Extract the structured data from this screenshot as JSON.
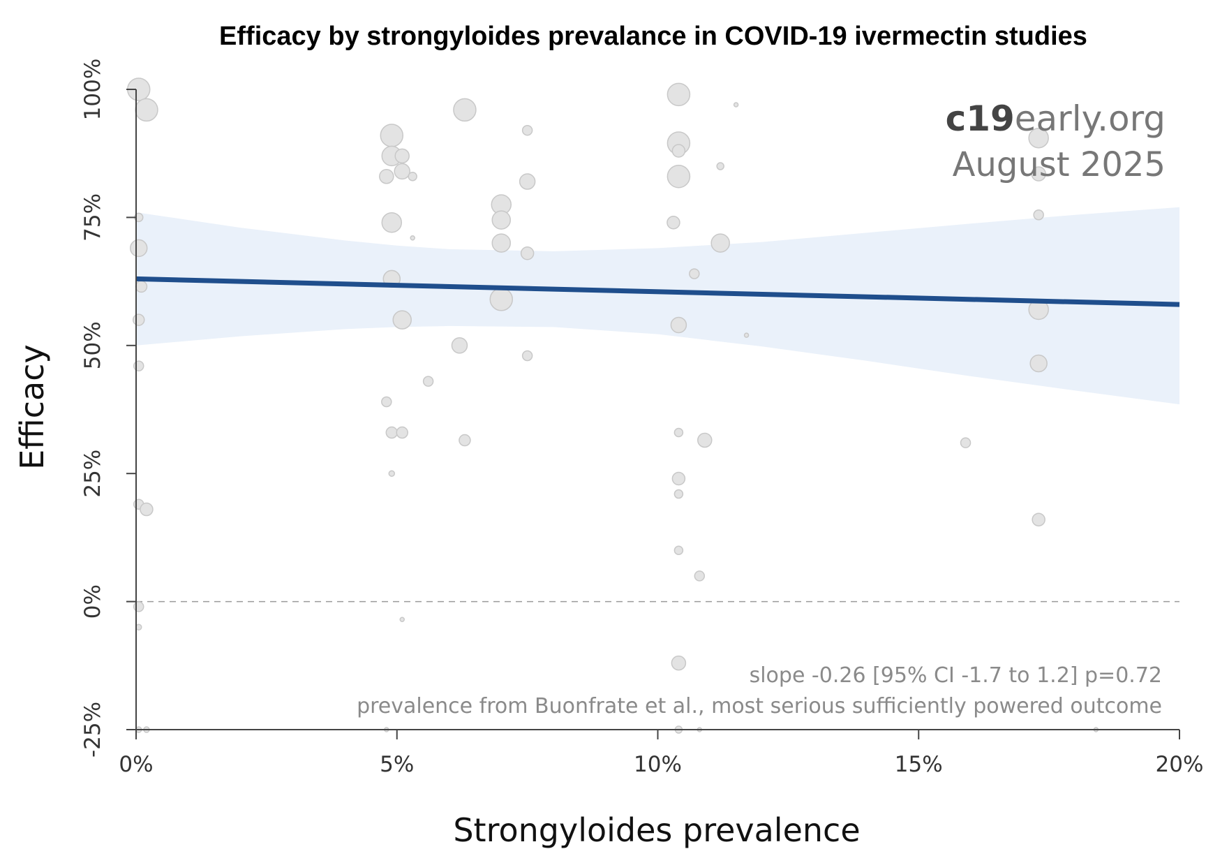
{
  "title": "Efficacy by strongyloides prevalance in COVID-19 ivermectin studies",
  "brand": {
    "bold": "c19",
    "rest": "early",
    "suffix": ".org",
    "date": "August 2025"
  },
  "notes": {
    "slope": "slope -0.26 [95% CI -1.7 to 1.2] p=0.72",
    "source": "prevalence from Buonfrate et al., most serious sufficiently powered outcome"
  },
  "colors": {
    "fit_line": "#1f4e8c",
    "ci_band": "#eaf1fa",
    "points_fill": "#e3e3e3",
    "points_stroke": "#c8c8c8",
    "zero_line": "#9a9a9a"
  },
  "chart_data": {
    "type": "scatter",
    "xlabel": "Strongyloides prevalence",
    "ylabel": "Efficacy",
    "xlim": [
      0,
      20
    ],
    "ylim": [
      -25,
      100
    ],
    "x_ticks": [
      0,
      5,
      10,
      15,
      20
    ],
    "y_ticks": [
      -25,
      0,
      25,
      50,
      75,
      100
    ],
    "x_tick_labels": [
      "0%",
      "5%",
      "10%",
      "15%",
      "20%"
    ],
    "y_tick_labels": [
      "-25%",
      "0%",
      "25%",
      "50%",
      "75%",
      "100%"
    ],
    "grid": false,
    "zero_reference_line": 0,
    "regression": {
      "x": [
        0,
        20
      ],
      "y": [
        63,
        58
      ],
      "ci_band": {
        "x": [
          0,
          2,
          4,
          5,
          6,
          8,
          10,
          12,
          14,
          16,
          18,
          20
        ],
        "upper": [
          76,
          73,
          70.5,
          69.5,
          68.8,
          68.4,
          69,
          70.2,
          72,
          73.8,
          75.5,
          77
        ],
        "lower": [
          50,
          51.8,
          53.2,
          53.6,
          53.8,
          53.6,
          52.2,
          49.8,
          47,
          44,
          41.2,
          38.5
        ]
      }
    },
    "points": [
      {
        "x": 0.05,
        "y": 100,
        "size": 16
      },
      {
        "x": 0.2,
        "y": 96,
        "size": 16
      },
      {
        "x": 0.05,
        "y": 75,
        "size": 6
      },
      {
        "x": 0.05,
        "y": 69,
        "size": 12
      },
      {
        "x": 0.1,
        "y": 61.5,
        "size": 8
      },
      {
        "x": 0.05,
        "y": 55,
        "size": 8
      },
      {
        "x": 0.05,
        "y": 46,
        "size": 7
      },
      {
        "x": 0.05,
        "y": 19,
        "size": 7
      },
      {
        "x": 0.2,
        "y": 18,
        "size": 9
      },
      {
        "x": 0.05,
        "y": -1,
        "size": 7
      },
      {
        "x": 0.05,
        "y": -5,
        "size": 4
      },
      {
        "x": 0.05,
        "y": -25,
        "size": 4
      },
      {
        "x": 0.2,
        "y": -25,
        "size": 4
      },
      {
        "x": 4.9,
        "y": 91,
        "size": 16
      },
      {
        "x": 4.9,
        "y": 87,
        "size": 14
      },
      {
        "x": 5.1,
        "y": 87,
        "size": 10
      },
      {
        "x": 5.1,
        "y": 84,
        "size": 11
      },
      {
        "x": 4.8,
        "y": 83,
        "size": 10
      },
      {
        "x": 5.3,
        "y": 83,
        "size": 6
      },
      {
        "x": 4.9,
        "y": 74,
        "size": 14
      },
      {
        "x": 5.3,
        "y": 71,
        "size": 3
      },
      {
        "x": 4.9,
        "y": 63,
        "size": 12
      },
      {
        "x": 5.1,
        "y": 55,
        "size": 13
      },
      {
        "x": 5.6,
        "y": 43,
        "size": 7
      },
      {
        "x": 4.8,
        "y": 39,
        "size": 7
      },
      {
        "x": 4.9,
        "y": 33,
        "size": 8
      },
      {
        "x": 5.1,
        "y": 33,
        "size": 8
      },
      {
        "x": 4.9,
        "y": 25,
        "size": 4
      },
      {
        "x": 5.1,
        "y": -3.5,
        "size": 3
      },
      {
        "x": 4.8,
        "y": -25,
        "size": 3
      },
      {
        "x": 6.3,
        "y": 96,
        "size": 16
      },
      {
        "x": 6.2,
        "y": 50,
        "size": 11
      },
      {
        "x": 6.3,
        "y": 31.5,
        "size": 8
      },
      {
        "x": 7.0,
        "y": 77.5,
        "size": 14
      },
      {
        "x": 7.0,
        "y": 74.5,
        "size": 13
      },
      {
        "x": 7.0,
        "y": 70,
        "size": 13
      },
      {
        "x": 7.0,
        "y": 59,
        "size": 16
      },
      {
        "x": 7.5,
        "y": 92,
        "size": 7
      },
      {
        "x": 7.5,
        "y": 82,
        "size": 11
      },
      {
        "x": 7.5,
        "y": 68,
        "size": 9
      },
      {
        "x": 7.5,
        "y": 48,
        "size": 7
      },
      {
        "x": 10.4,
        "y": 99,
        "size": 16
      },
      {
        "x": 10.4,
        "y": 89.5,
        "size": 16
      },
      {
        "x": 10.4,
        "y": 88,
        "size": 9
      },
      {
        "x": 10.4,
        "y": 83,
        "size": 16
      },
      {
        "x": 10.3,
        "y": 74,
        "size": 9
      },
      {
        "x": 10.4,
        "y": 54,
        "size": 11
      },
      {
        "x": 10.4,
        "y": 33,
        "size": 6
      },
      {
        "x": 10.4,
        "y": 24,
        "size": 9
      },
      {
        "x": 10.4,
        "y": 21,
        "size": 6
      },
      {
        "x": 10.4,
        "y": 10,
        "size": 6
      },
      {
        "x": 10.4,
        "y": -12,
        "size": 10
      },
      {
        "x": 10.4,
        "y": -25,
        "size": 5
      },
      {
        "x": 10.7,
        "y": 64,
        "size": 7
      },
      {
        "x": 10.8,
        "y": 5,
        "size": 7
      },
      {
        "x": 10.8,
        "y": -25,
        "size": 3
      },
      {
        "x": 10.9,
        "y": 31.5,
        "size": 10
      },
      {
        "x": 11.2,
        "y": 70,
        "size": 13
      },
      {
        "x": 11.2,
        "y": 85,
        "size": 5
      },
      {
        "x": 11.5,
        "y": 97,
        "size": 3
      },
      {
        "x": 11.7,
        "y": 52,
        "size": 3
      },
      {
        "x": 15.9,
        "y": 31,
        "size": 7
      },
      {
        "x": 17.3,
        "y": 90.5,
        "size": 14
      },
      {
        "x": 17.3,
        "y": 83.5,
        "size": 10
      },
      {
        "x": 17.3,
        "y": 75.5,
        "size": 7
      },
      {
        "x": 17.3,
        "y": 57,
        "size": 14
      },
      {
        "x": 17.3,
        "y": 46.5,
        "size": 12
      },
      {
        "x": 17.3,
        "y": 16,
        "size": 9
      },
      {
        "x": 18.4,
        "y": -25,
        "size": 3
      }
    ]
  }
}
